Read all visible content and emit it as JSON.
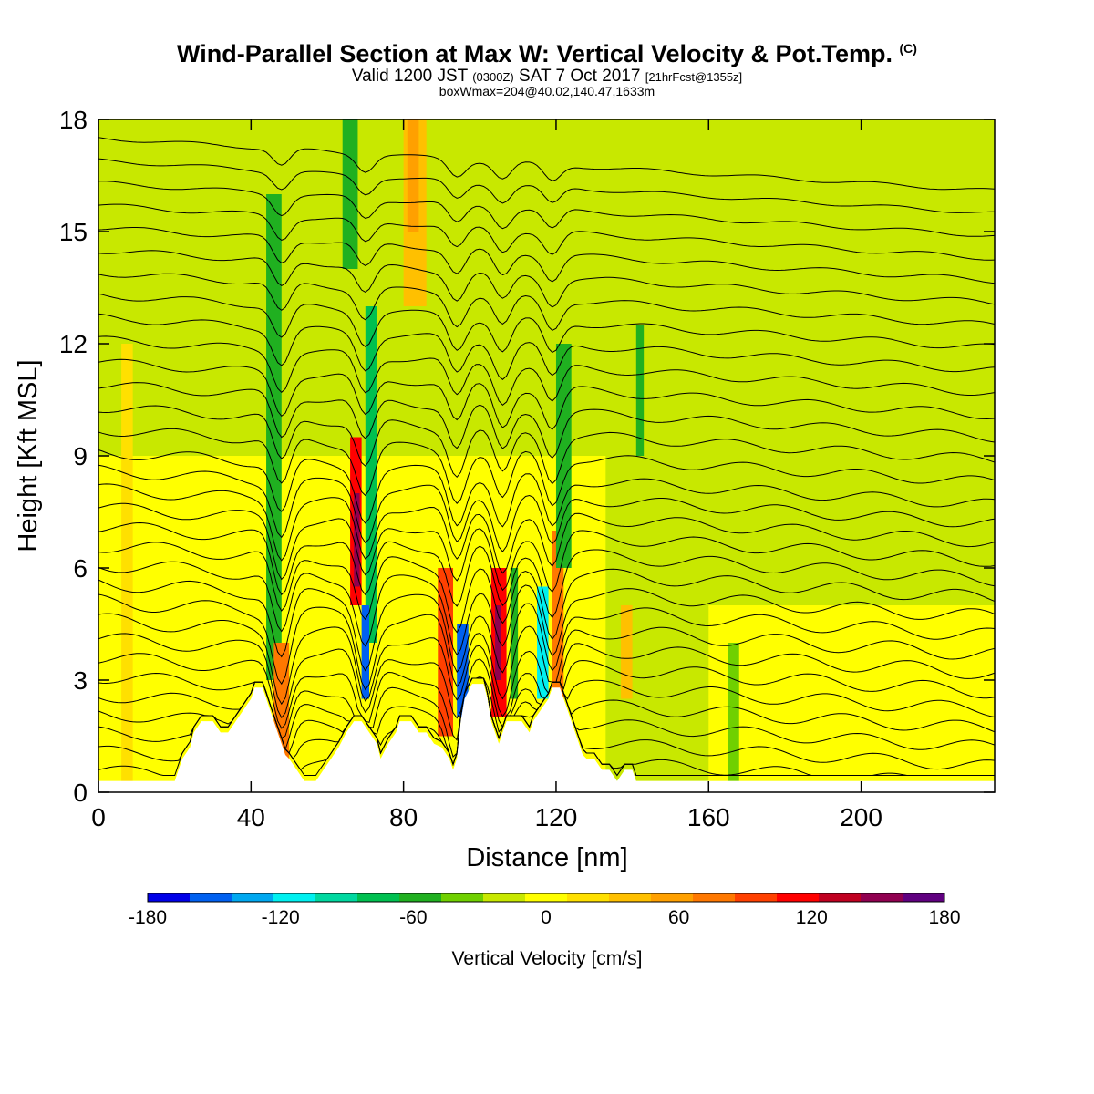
{
  "header": {
    "title_main": "Wind-Parallel Section at Max W: Vertical Velocity & Pot.Temp.",
    "copyright": "(C)",
    "valid_prefix": "Valid 1200 JST",
    "valid_utc": "(0300Z)",
    "valid_date": "SAT 7 Oct 2017",
    "forecast": "[21hrFcst@1355z]",
    "boxwmax": "boxWmax=204@40.02,140.47,1633m"
  },
  "chart_data": {
    "type": "heatmap",
    "xlabel": "Distance [nm]",
    "ylabel": "Height [Kft MSL]",
    "xlim": [
      0,
      235
    ],
    "ylim": [
      0,
      18
    ],
    "xticks": [
      0,
      40,
      80,
      120,
      160,
      200
    ],
    "yticks": [
      0,
      3,
      6,
      9,
      12,
      15,
      18
    ],
    "colorbar": {
      "label": "Vertical Velocity [cm/s]",
      "ticks": [
        -180,
        -120,
        -60,
        0,
        60,
        120,
        180
      ],
      "bins": [
        -180,
        -160,
        -140,
        -120,
        -100,
        -80,
        -60,
        -40,
        -20,
        0,
        20,
        40,
        60,
        80,
        100,
        120,
        140,
        160,
        180
      ],
      "colors": [
        "#0000e8",
        "#0060f0",
        "#00a8f0",
        "#00f0f0",
        "#00d8a0",
        "#00c050",
        "#20b020",
        "#70d000",
        "#c8e800",
        "#ffff00",
        "#ffe000",
        "#ffc000",
        "#ffa000",
        "#ff7800",
        "#ff4000",
        "#ff0000",
        "#c00020",
        "#900050",
        "#600080"
      ]
    },
    "terrain_kft": [
      [
        0,
        0.3
      ],
      [
        20,
        0.3
      ],
      [
        21,
        0.6
      ],
      [
        22,
        0.9
      ],
      [
        24,
        1.2
      ],
      [
        25,
        1.6
      ],
      [
        27,
        1.9
      ],
      [
        30,
        1.9
      ],
      [
        32,
        1.6
      ],
      [
        34,
        1.6
      ],
      [
        36,
        1.9
      ],
      [
        38,
        2.2
      ],
      [
        40,
        2.5
      ],
      [
        41,
        2.8
      ],
      [
        43,
        2.8
      ],
      [
        44,
        2.5
      ],
      [
        45,
        2.2
      ],
      [
        46,
        1.9
      ],
      [
        47,
        1.6
      ],
      [
        48,
        1.3
      ],
      [
        49,
        1.0
      ],
      [
        50,
        0.9
      ],
      [
        52,
        0.6
      ],
      [
        54,
        0.3
      ],
      [
        57,
        0.3
      ],
      [
        59,
        0.6
      ],
      [
        61,
        0.9
      ],
      [
        63,
        1.2
      ],
      [
        65,
        1.6
      ],
      [
        67,
        1.9
      ],
      [
        69,
        1.9
      ],
      [
        71,
        1.6
      ],
      [
        73,
        1.3
      ],
      [
        74,
        0.9
      ],
      [
        76,
        1.3
      ],
      [
        78,
        1.6
      ],
      [
        79,
        1.9
      ],
      [
        82,
        1.9
      ],
      [
        84,
        1.6
      ],
      [
        86,
        1.6
      ],
      [
        88,
        1.3
      ],
      [
        90,
        1.2
      ],
      [
        92,
        0.9
      ],
      [
        93,
        0.6
      ],
      [
        94,
        0.9
      ],
      [
        95,
        1.9
      ],
      [
        96,
        2.5
      ],
      [
        98,
        2.9
      ],
      [
        101,
        2.9
      ],
      [
        102,
        2.5
      ],
      [
        103,
        1.9
      ],
      [
        104,
        1.6
      ],
      [
        105,
        1.3
      ],
      [
        106,
        1.6
      ],
      [
        107,
        1.9
      ],
      [
        111,
        1.9
      ],
      [
        113,
        1.6
      ],
      [
        114,
        1.9
      ],
      [
        116,
        2.2
      ],
      [
        118,
        2.5
      ],
      [
        119,
        2.8
      ],
      [
        121,
        2.8
      ],
      [
        122,
        2.5
      ],
      [
        123,
        2.2
      ],
      [
        124,
        1.9
      ],
      [
        125,
        1.6
      ],
      [
        126,
        1.3
      ],
      [
        127,
        1.0
      ],
      [
        128,
        0.9
      ],
      [
        130,
        0.9
      ],
      [
        132,
        0.6
      ],
      [
        134,
        0.6
      ],
      [
        136,
        0.3
      ],
      [
        138,
        0.6
      ],
      [
        140,
        0.6
      ],
      [
        141,
        0.3
      ],
      [
        143,
        0.3
      ]
    ],
    "velocity_cells_cm_s": [
      {
        "x0": 0,
        "x1": 235,
        "y0": 0.3,
        "y1": 18,
        "w": 0
      },
      {
        "x0": 0,
        "x1": 235,
        "y0": 9,
        "y1": 18,
        "w": -10
      },
      {
        "x0": 133,
        "x1": 235,
        "y0": 0.3,
        "y1": 9,
        "w": -10
      },
      {
        "x0": 160,
        "x1": 235,
        "y0": 0.3,
        "y1": 5,
        "w": 10
      },
      {
        "x0": 0,
        "x1": 70,
        "y0": 0.3,
        "y1": 9,
        "w": 10
      },
      {
        "x0": 44,
        "x1": 48,
        "y0": 3,
        "y1": 16,
        "w": -50
      },
      {
        "x0": 46,
        "x1": 50,
        "y0": 0.3,
        "y1": 4,
        "w": 80
      },
      {
        "x0": 64,
        "x1": 68,
        "y0": 14,
        "y1": 18,
        "w": -50
      },
      {
        "x0": 70,
        "x1": 73,
        "y0": 4,
        "y1": 13,
        "w": -80
      },
      {
        "x0": 69,
        "x1": 71,
        "y0": 2.5,
        "y1": 5,
        "w": -150
      },
      {
        "x0": 66,
        "x1": 69,
        "y0": 5,
        "y1": 9.5,
        "w": 130
      },
      {
        "x0": 67,
        "x1": 68.5,
        "y0": 5.5,
        "y1": 8,
        "w": 160
      },
      {
        "x0": 80,
        "x1": 86,
        "y0": 13,
        "y1": 18,
        "w": 50
      },
      {
        "x0": 81,
        "x1": 84,
        "y0": 15,
        "y1": 18,
        "w": 70
      },
      {
        "x0": 89,
        "x1": 93,
        "y0": 1.5,
        "y1": 6,
        "w": 100
      },
      {
        "x0": 94,
        "x1": 97,
        "y0": 2,
        "y1": 4.5,
        "w": -150
      },
      {
        "x0": 103,
        "x1": 107,
        "y0": 2,
        "y1": 6,
        "w": 130
      },
      {
        "x0": 104,
        "x1": 105.5,
        "y0": 3,
        "y1": 5,
        "w": 160
      },
      {
        "x0": 108,
        "x1": 110,
        "y0": 2.5,
        "y1": 6,
        "w": -60
      },
      {
        "x0": 115,
        "x1": 118,
        "y0": 2.5,
        "y1": 5.5,
        "w": -110
      },
      {
        "x0": 119,
        "x1": 122,
        "y0": 2.5,
        "y1": 7,
        "w": 90
      },
      {
        "x0": 120,
        "x1": 124,
        "y0": 6,
        "y1": 12,
        "w": -50
      },
      {
        "x0": 137,
        "x1": 140,
        "y0": 2.5,
        "y1": 5,
        "w": 50
      },
      {
        "x0": 141,
        "x1": 143,
        "y0": 9,
        "y1": 12.5,
        "w": -50
      },
      {
        "x0": 165,
        "x1": 168,
        "y0": 0.3,
        "y1": 4,
        "w": -30
      },
      {
        "x0": 6,
        "x1": 9,
        "y0": 0.3,
        "y1": 12,
        "w": 20
      }
    ],
    "pot_temp_contours": {
      "base_kft": [
        0.6,
        1.1,
        1.6,
        2.1,
        2.6,
        3.1,
        3.6,
        4.1,
        4.6,
        5.1,
        5.6,
        6.1,
        6.6,
        7.1,
        7.6,
        8.1,
        8.6,
        9.1,
        9.7,
        10.3,
        10.9,
        11.5,
        12.1,
        12.7,
        13.3,
        13.9,
        14.5,
        15.1,
        15.7,
        16.3,
        16.9,
        17.5
      ],
      "slope_kft_per_nm": -0.006,
      "wave_troughs_nm": [
        48,
        70,
        94,
        106,
        119
      ],
      "wave_amplitude_kft": 1.8
    }
  }
}
